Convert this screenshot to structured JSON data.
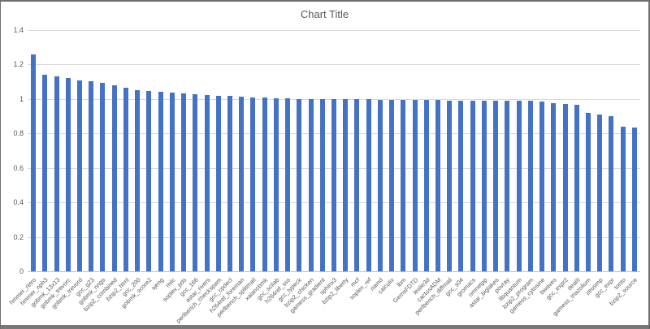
{
  "window": {
    "border_color": "#6e6e6e",
    "bottom_bar_color": "#787878",
    "background_color": "#ffffff"
  },
  "chart_data": {
    "type": "bar",
    "title": "Chart Title",
    "xlabel": "",
    "ylabel": "",
    "ylim": [
      0,
      1.4
    ],
    "ytick_step": 0.2,
    "ytick_labels": [
      "0",
      "0.2",
      "0.4",
      "0.6",
      "0.8",
      "1",
      "1.2",
      "1.4"
    ],
    "grid": true,
    "legend": "none",
    "bar_color": "#4472c4",
    "gridline_color": "#d9d9d9",
    "axis_line_color": "#bfbfbf",
    "text_color": "#595959",
    "categories": [
      "hmmer_retro",
      "hmmer_nph3",
      "gobmk_13x13",
      "gobmk_trevorc",
      "gobmk_trevord",
      "gcc_g23",
      "gobmk_nngs",
      "bzip2_combined",
      "bzip2_html",
      "gcc_200",
      "gobmk_score2",
      "sjeng",
      "milc",
      "soplex_pds",
      "gcc_166",
      "astar_rivers",
      "perlbench_checkspam",
      "gcc_cpdecl",
      "h264ref_foreman",
      "perlbench_splitmail",
      "xalancbmk",
      "gcc_scilab",
      "h264ref_sss",
      "gcc_typeck",
      "bzip2_chicken",
      "gamess_gradient",
      "sphinx3",
      "bzip2_liberty",
      "mcf",
      "soplex_ref",
      "namd",
      "calculix",
      "lbm",
      "GemsFDTD",
      "leslie3d",
      "cactusADM",
      "perlbench_diffmail",
      "gcc_s04",
      "gromacs",
      "omnetpp",
      "astar_biglakes",
      "povray",
      "libquantum",
      "bzip2_program",
      "gamess_cytosine",
      "bwaves",
      "gcc_expr2",
      "dealII",
      "gamess_triazolium",
      "zeusmp",
      "gcc_expr",
      "tonto",
      "bzip2_source"
    ],
    "values": [
      1.26,
      1.14,
      1.13,
      1.12,
      1.11,
      1.105,
      1.095,
      1.08,
      1.065,
      1.05,
      1.045,
      1.04,
      1.035,
      1.03,
      1.028,
      1.022,
      1.02,
      1.018,
      1.015,
      1.01,
      1.008,
      1.005,
      1.003,
      1.0,
      1.0,
      1.0,
      0.999,
      0.998,
      0.998,
      0.997,
      0.996,
      0.996,
      0.995,
      0.995,
      0.994,
      0.993,
      0.992,
      0.992,
      0.991,
      0.99,
      0.99,
      0.99,
      0.989,
      0.988,
      0.984,
      0.978,
      0.97,
      0.965,
      0.92,
      0.908,
      0.898,
      0.84,
      0.832
    ]
  }
}
